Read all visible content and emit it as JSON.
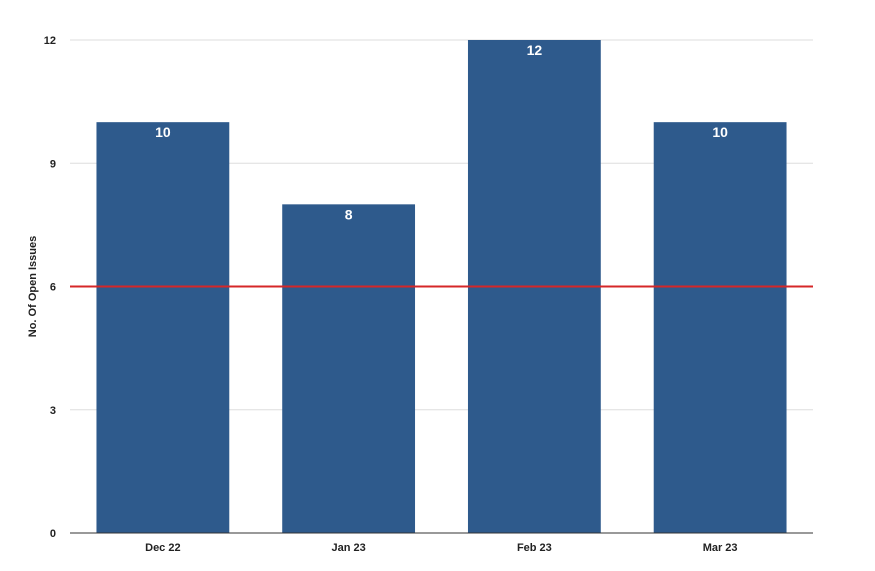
{
  "chart_data": {
    "type": "bar",
    "categories": [
      "Dec 22",
      "Jan 23",
      "Feb 23",
      "Mar 23"
    ],
    "values": [
      10,
      8,
      12,
      10
    ],
    "data_labels": [
      "10",
      "8",
      "12",
      "10"
    ],
    "ylabel": "No. Of Open Issues",
    "xlabel": "",
    "ylim": [
      0,
      12
    ],
    "yticks": [
      0,
      3,
      6,
      9,
      12
    ],
    "ytick_labels": [
      "0",
      "3",
      "6",
      "9",
      "12"
    ],
    "reference_line": {
      "value": 6
    },
    "grid": true,
    "legend": "none",
    "colors": {
      "bar": "#2e5a8c",
      "reference_line": "#d62728",
      "grid": "#dddddd",
      "axis": "#333333"
    }
  }
}
